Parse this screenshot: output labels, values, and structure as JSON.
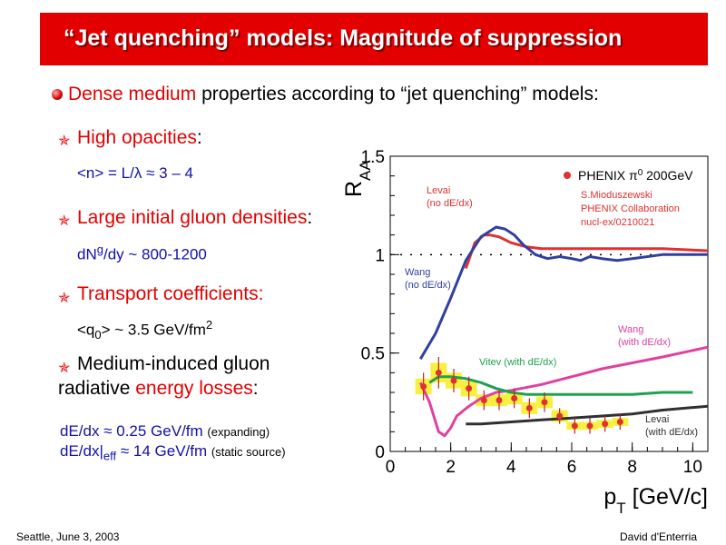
{
  "slide": {
    "title": "“Jet quenching” models: Magnitude of suppression",
    "main_bullet_red": "Dense medium",
    "main_bullet_rest": " properties according to “jet quenching” models:",
    "items": [
      {
        "label_red": "High opacities",
        "label_rest": ":",
        "formula": "<n> = L/λ ≈ 3 – 4"
      },
      {
        "label_red": "Large initial gluon densities",
        "label_rest": ":",
        "formula_a": "dN",
        "formula_sup": "g",
        "formula_b": "/dy ~ 800-1200"
      },
      {
        "label_red": "Transport coefficients:",
        "label_rest": "",
        "formula_a": "<q",
        "formula_sub": "0",
        "formula_b": "> ~ 3.5 GeV/fm",
        "formula_sup": "2"
      },
      {
        "label_line1": "Medium-induced gluon",
        "label_line2_a": "radiative ",
        "label_line2_red": "energy losses",
        "label_line2_b": ":",
        "formula1": "dE/dx ≈ 0.25 GeV/fm",
        "formula1_note": "(expanding)",
        "formula2_a": "dE/dx|",
        "formula2_sub": "eff",
        "formula2_b": " ≈ 14 GeV/fm",
        "formula2_note": "(static source)"
      }
    ],
    "footer_left": "Seattle, June  3, 2003",
    "footer_right": "David d'Enterria",
    "colors": {
      "title_bg": "#e30000",
      "accent": "#e30000",
      "formula": "#1111aa"
    }
  },
  "chart_data": {
    "type": "line",
    "xlabel": "p_T [GeV/c]",
    "ylabel": "R_AA",
    "xlim": [
      0,
      10.5
    ],
    "ylim": [
      0,
      1.5
    ],
    "xticks": [
      "0",
      "2",
      "4",
      "6",
      "8",
      "10"
    ],
    "yticks": [
      "0",
      "0.5",
      "1",
      "1.5"
    ],
    "reference_line_y": 1,
    "legend": {
      "marker_label": "PHENIX π",
      "marker_sup": "0",
      "marker_rest": " 200GeV",
      "ref1": "S.Mioduszewski",
      "ref2": "PHENIX Collaboration",
      "ref3": "nucl-ex/0210021"
    },
    "series": [
      {
        "name": "Levai (no dE/dx)",
        "color": "#e03030",
        "x": [
          2.5,
          2.8,
          3.1,
          3.3,
          3.6,
          4.0,
          4.5,
          5.0,
          6.0,
          7.0,
          8.0,
          9.0,
          10.5
        ],
        "y": [
          0.93,
          1.06,
          1.1,
          1.1,
          1.09,
          1.06,
          1.04,
          1.03,
          1.03,
          1.03,
          1.03,
          1.03,
          1.02
        ]
      },
      {
        "name": "Wang (no dE/dx)",
        "color": "#3040a0",
        "x": [
          1.0,
          1.5,
          2.0,
          2.5,
          3.0,
          3.5,
          3.8,
          4.1,
          4.4,
          4.8,
          5.2,
          5.6,
          6.0,
          6.3,
          6.6,
          7.0,
          7.5,
          8.0,
          9.0,
          10.5
        ],
        "y": [
          0.47,
          0.6,
          0.78,
          0.97,
          1.09,
          1.14,
          1.13,
          1.1,
          1.05,
          1.0,
          0.98,
          0.99,
          0.98,
          0.97,
          0.99,
          0.98,
          0.97,
          0.98,
          1.0,
          1.0
        ]
      },
      {
        "name": "Wang (with dE/dx)",
        "color": "#e040a0",
        "x": [
          1.0,
          1.3,
          1.6,
          1.8,
          2.0,
          2.2,
          2.6,
          3.0,
          3.5,
          4.0,
          5.0,
          6.0,
          7.0,
          8.0,
          9.0,
          10.5
        ],
        "y": [
          0.35,
          0.25,
          0.1,
          0.08,
          0.12,
          0.18,
          0.23,
          0.27,
          0.3,
          0.31,
          0.34,
          0.38,
          0.42,
          0.45,
          0.48,
          0.53
        ]
      },
      {
        "name": "Vitev (with dE/dx)",
        "color": "#20a050",
        "x": [
          1.3,
          1.6,
          2.0,
          2.5,
          3.0,
          3.5,
          4.0,
          4.5,
          5.0,
          6.0,
          7.0,
          8.0,
          9.0,
          10.0
        ],
        "y": [
          0.35,
          0.38,
          0.38,
          0.37,
          0.35,
          0.32,
          0.3,
          0.29,
          0.29,
          0.29,
          0.29,
          0.29,
          0.3,
          0.3
        ]
      },
      {
        "name": "Levai (with dE/dx)",
        "color": "#303030",
        "x": [
          2.5,
          3.0,
          4.0,
          5.0,
          6.0,
          7.0,
          8.0,
          9.0,
          10.5
        ],
        "y": [
          0.14,
          0.14,
          0.15,
          0.16,
          0.17,
          0.18,
          0.19,
          0.21,
          0.23
        ]
      }
    ],
    "points": {
      "name": "PHENIX π0 200GeV",
      "color": "#e03030",
      "band_color": "#f8f040",
      "x": [
        1.1,
        1.6,
        2.1,
        2.6,
        3.1,
        3.6,
        4.1,
        4.6,
        5.1,
        5.6,
        6.1,
        6.6,
        7.1,
        7.6
      ],
      "y": [
        0.33,
        0.4,
        0.36,
        0.32,
        0.26,
        0.26,
        0.27,
        0.22,
        0.25,
        0.18,
        0.13,
        0.13,
        0.14,
        0.15
      ],
      "err": [
        0.07,
        0.08,
        0.06,
        0.06,
        0.05,
        0.05,
        0.05,
        0.05,
        0.05,
        0.04,
        0.04,
        0.04,
        0.04,
        0.04
      ],
      "sys": [
        0.04,
        0.05,
        0.04,
        0.04,
        0.03,
        0.03,
        0.03,
        0.03,
        0.03,
        0.03,
        0.02,
        0.02,
        0.02,
        0.02
      ]
    },
    "curve_labels": [
      {
        "l1": "Levai",
        "l2": "(no dE/dx)",
        "color": "#e03030"
      },
      {
        "l1": "Wang",
        "l2": "(no dE/dx)",
        "color": "#3040a0"
      },
      {
        "l1": "Wang",
        "l2": "(with dE/dx)",
        "color": "#e040a0"
      },
      {
        "l1": "Vitev (with dE/dx)",
        "l2": "",
        "color": "#20a050"
      },
      {
        "l1": "Levai",
        "l2": "(with dE/dx)",
        "color": "#303030"
      }
    ]
  }
}
